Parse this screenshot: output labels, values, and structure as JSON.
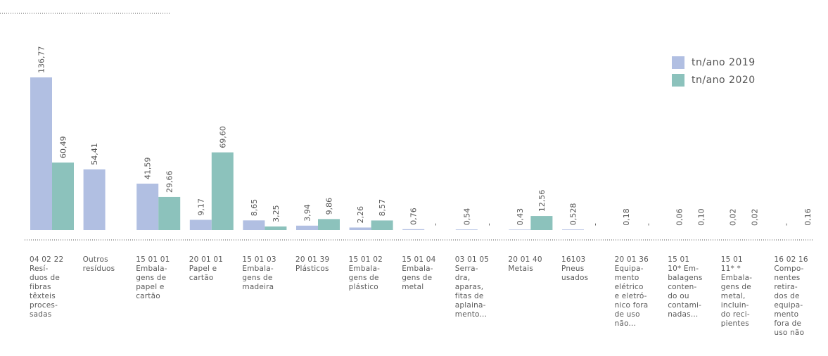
{
  "colors": {
    "series2019": "#b1bfe2",
    "series2020": "#8cc2bc",
    "dots": "#555555"
  },
  "chart_data": {
    "type": "bar",
    "ylim": [
      0,
      140
    ],
    "grid": false,
    "legend_position": "top-right",
    "categories": [
      "04 02 22\nResí-\nduos de\nfibras\ntêxteis\nproces-\nsadas",
      "Outros\nresíduos",
      "15 01 01\nEmbala-\ngens de\npapel e\ncartão",
      "20 01 01\nPapel e\ncartão",
      "15 01 03\nEmbala-\ngens de\nmadeira",
      "20 01 39\nPlásticos",
      "15 01 02\nEmbala-\ngens de\nplástico",
      "15 01 04\nEmbala-\ngens de\nmetal",
      "03 01 05\nSerra-\ndra,\naparas,\nfitas de\naplaina-\nmento...",
      "20 01 40\nMetais",
      "16103\nPneus\nusados",
      "20 01 36\nEquipa-\nmento\nelétrico\ne eletró-\nnico fora\nde uso\nnão...",
      "15 01\n10* Em-\nbalagens\nconten-\ndo ou\ncontami-\nnadas...",
      "15 01\n11* *\nEmbala-\ngens de\nmetal,\ninclu­in-\ndo reci-\npientes",
      "16 02 16\nCompo-\nnentes\nretira-\ndos de\nequipa-\nmento\nfora de\nuso não"
    ],
    "series": [
      {
        "name": "tn/ano  2019",
        "values": [
          136.77,
          54.41,
          41.59,
          9.17,
          8.65,
          3.94,
          2.26,
          0.76,
          0.54,
          0.43,
          0.528,
          0.18,
          0.06,
          0.02,
          null
        ],
        "labels": [
          "136,77",
          "54,41",
          "41,59",
          "9,17",
          "8,65",
          "3,94",
          "2,26",
          "0,76",
          "0,54",
          "0,43",
          "0,528",
          "0,18",
          "0,06",
          "0,02",
          "-"
        ]
      },
      {
        "name": "tn/ano  2020",
        "values": [
          60.49,
          null,
          29.66,
          69.6,
          3.25,
          9.86,
          8.57,
          null,
          null,
          12.56,
          null,
          null,
          0.1,
          0.02,
          0.16
        ],
        "labels": [
          "60,49",
          "",
          "29,66",
          "69,60",
          "3,25",
          "9,86",
          "8,57",
          "-",
          "-",
          "12,56",
          "-",
          "-",
          "0,10",
          "0,02",
          "0,16"
        ]
      }
    ]
  }
}
